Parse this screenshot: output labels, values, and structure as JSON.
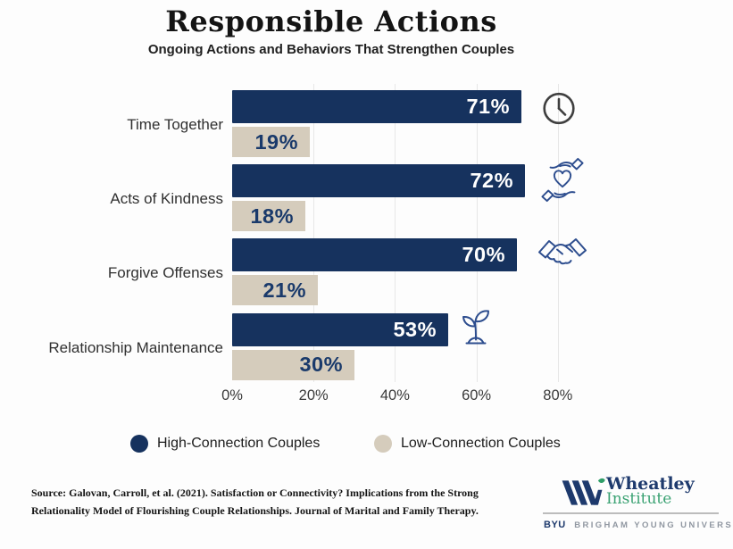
{
  "title": "Responsible Actions",
  "subtitle": "Ongoing Actions and Behaviors That Strengthen Couples",
  "chart_data": {
    "type": "bar",
    "orientation": "horizontal",
    "title": "Responsible Actions",
    "subtitle": "Ongoing Actions and Behaviors That Strengthen Couples",
    "categories": [
      "Time Together",
      "Acts of Kindness",
      "Forgive Offenses",
      "Relationship Maintenance"
    ],
    "series": [
      {
        "name": "High-Connection Couples",
        "values": [
          71,
          72,
          70,
          53
        ],
        "color": "#16325e",
        "label_color": "#ffffff"
      },
      {
        "name": "Low-Connection Couples",
        "values": [
          19,
          18,
          21,
          30
        ],
        "color": "#d5ccbc",
        "label_color": "#1a3a6b"
      }
    ],
    "value_suffix": "%",
    "x_ticks": [
      "0%",
      "20%",
      "40%",
      "60%",
      "80%"
    ],
    "x_tick_values": [
      0,
      20,
      40,
      60,
      80
    ],
    "xlim": [
      0,
      80
    ],
    "grid": true,
    "legend_position": "bottom",
    "row_icons": [
      "clock-icon",
      "hands-heart-icon",
      "handshake-icon",
      "sprout-icon"
    ]
  },
  "legend": {
    "items": [
      {
        "label": "High-Connection Couples",
        "color": "#16325e"
      },
      {
        "label": "Low-Connection Couples",
        "color": "#d5ccbc"
      }
    ]
  },
  "source": {
    "line1": "Source: Galovan, Carroll, et al. (2021). Satisfaction or Connectivity? Implications from the Strong",
    "line2": "Relationality Model of Flourishing Couple Relationships. Journal of Marital and Family Therapy."
  },
  "logo": {
    "name1": "Wheatley",
    "name2": "Institute",
    "byu": "BYU",
    "university": "BRIGHAM YOUNG UNIVERSITY"
  },
  "colors": {
    "navy": "#16325e",
    "tan": "#d5ccbc",
    "value_navy": "#1a3a6b",
    "icon_stroke": "#2d4d8e",
    "clock_stroke": "#3f3f3f",
    "gridline": "#e7e7e7",
    "logo_navy": "#1e3a6d",
    "logo_green": "#2f9e68"
  }
}
